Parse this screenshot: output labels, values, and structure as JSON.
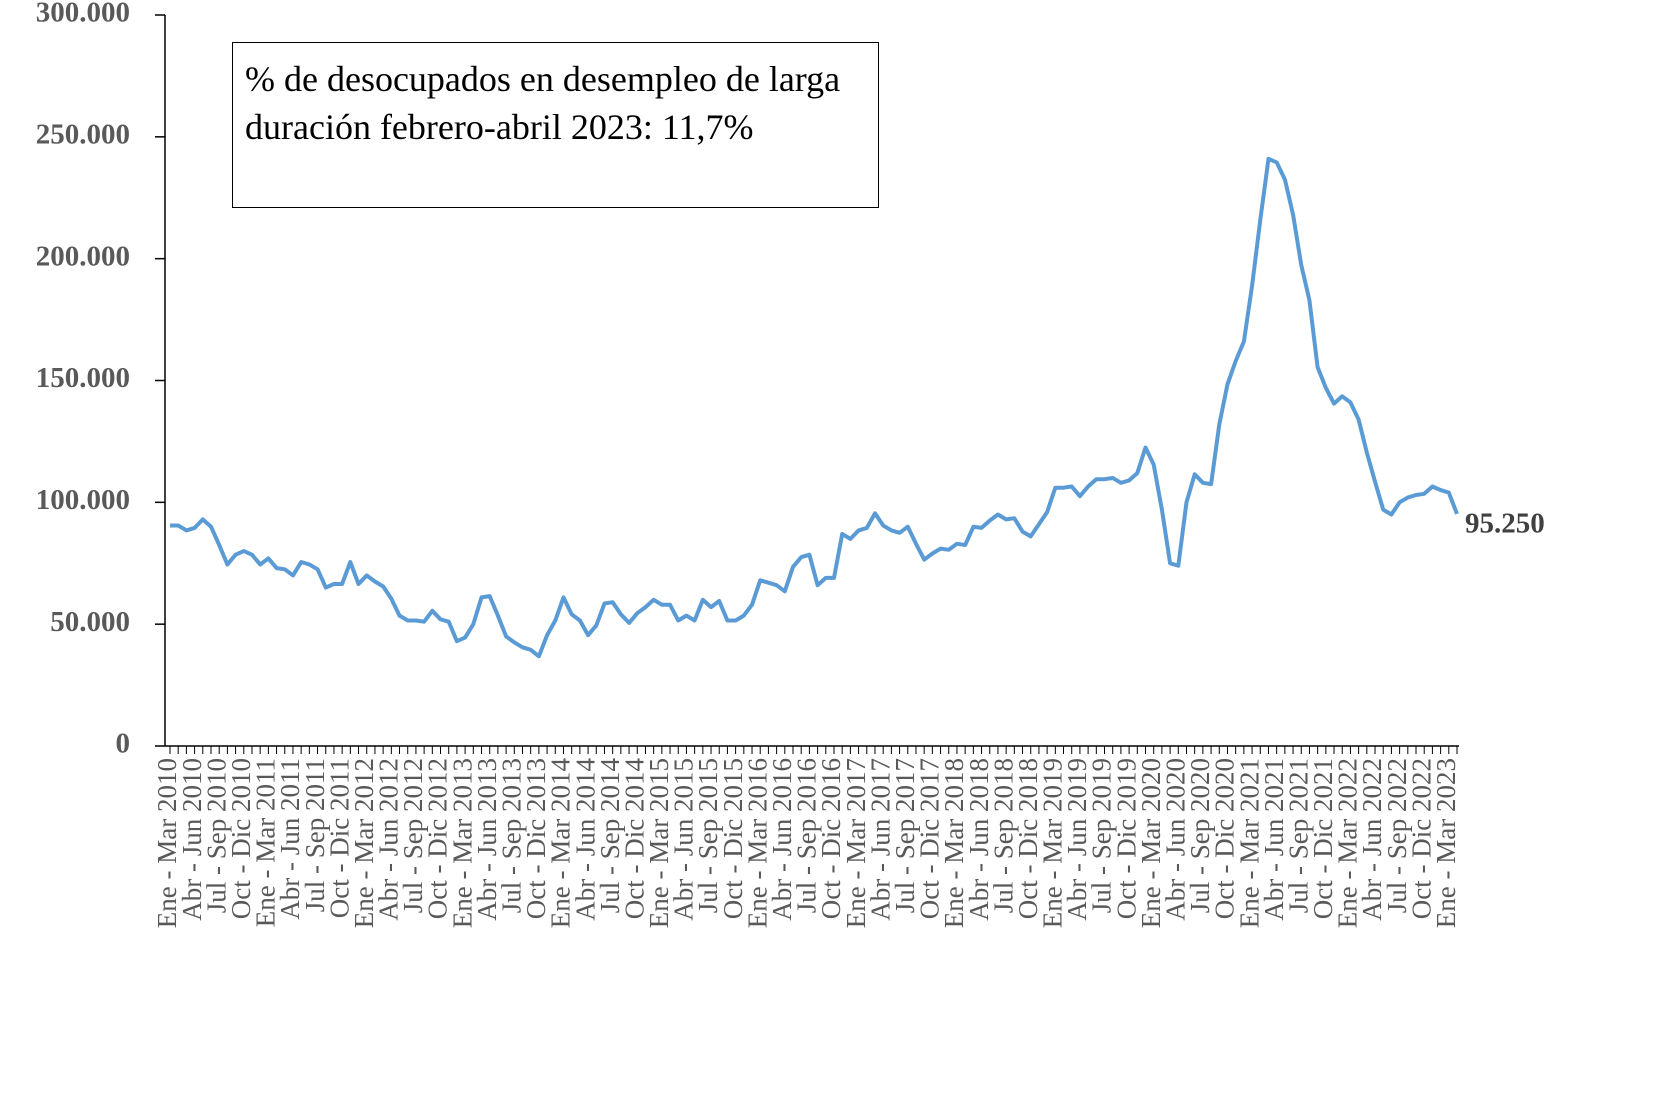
{
  "chart_data": {
    "type": "line",
    "annotation": "% de desocupados en desempleo de larga duración febrero-abril 2023: 11,7%",
    "categories": [
      "Ene - Mar 2010",
      null,
      null,
      "Abr - Jun 2010",
      null,
      null,
      "Jul - Sep 2010",
      null,
      null,
      "Oct - Dic 2010",
      null,
      null,
      "Ene - Mar 2011",
      null,
      null,
      "Abr - Jun 2011",
      null,
      null,
      "Jul - Sep 2011",
      null,
      null,
      "Oct - Dic 2011",
      null,
      null,
      "Ene - Mar 2012",
      null,
      null,
      "Abr - Jun 2012",
      null,
      null,
      "Jul - Sep 2012",
      null,
      null,
      "Oct - Dic 2012",
      null,
      null,
      "Ene - Mar 2013",
      null,
      null,
      "Abr - Jun 2013",
      null,
      null,
      "Jul - Sep 2013",
      null,
      null,
      "Oct - Dic 2013",
      null,
      null,
      "Ene - Mar 2014",
      null,
      null,
      "Abr - Jun 2014",
      null,
      null,
      "Jul - Sep 2014",
      null,
      null,
      "Oct - Dic 2014",
      null,
      null,
      "Ene - Mar 2015",
      null,
      null,
      "Abr - Jun 2015",
      null,
      null,
      "Jul - Sep 2015",
      null,
      null,
      "Oct - Dic 2015",
      null,
      null,
      "Ene - Mar 2016",
      null,
      null,
      "Abr - Jun 2016",
      null,
      null,
      "Jul - Sep 2016",
      null,
      null,
      "Oct - Dic 2016",
      null,
      null,
      "Ene - Mar 2017",
      null,
      null,
      "Abr - Jun 2017",
      null,
      null,
      "Jul - Sep 2017",
      null,
      null,
      "Oct - Dic 2017",
      null,
      null,
      "Ene - Mar 2018",
      null,
      null,
      "Abr - Jun 2018",
      null,
      null,
      "Jul - Sep 2018",
      null,
      null,
      "Oct - Dic 2018",
      null,
      null,
      "Ene - Mar 2019",
      null,
      null,
      "Abr - Jun 2019",
      null,
      null,
      "Jul - Sep 2019",
      null,
      null,
      "Oct - Dic 2019",
      null,
      null,
      "Ene - Mar 2020",
      null,
      null,
      "Abr - Jun 2020",
      null,
      null,
      "Jul - Sep 2020",
      null,
      null,
      "Oct - Dic 2020",
      null,
      null,
      "Ene - Mar 2021",
      null,
      null,
      "Abr - Jun 2021",
      null,
      null,
      "Jul - Sep 2021",
      null,
      null,
      "Oct - Dic 2021",
      null,
      null,
      "Ene - Mar 2022",
      null,
      null,
      "Abr - Jun 2022",
      null,
      null,
      "Jul - Sep 2022",
      null,
      null,
      "Oct - Dic 2022",
      null,
      null,
      "Ene - Mar 2023",
      null
    ],
    "values": [
      90500,
      90500,
      88500,
      89500,
      93000,
      90000,
      82500,
      74500,
      78500,
      80000,
      78500,
      74500,
      77000,
      73000,
      72500,
      70000,
      75500,
      74500,
      72500,
      65000,
      66500,
      66500,
      75500,
      66500,
      70000,
      67500,
      65500,
      60500,
      53500,
      51500,
      51500,
      51000,
      55500,
      52000,
      51000,
      43000,
      44500,
      50000,
      61000,
      61500,
      53500,
      45000,
      42500,
      40500,
      39500,
      36800,
      45500,
      51500,
      61000,
      54000,
      51500,
      45500,
      49500,
      58500,
      59000,
      54000,
      50500,
      54500,
      57000,
      60000,
      58000,
      58000,
      51500,
      53500,
      51500,
      60000,
      57000,
      59500,
      51500,
      51500,
      53500,
      58000,
      68000,
      67000,
      66000,
      63500,
      73500,
      77500,
      78500,
      66000,
      69000,
      69000,
      87000,
      85000,
      88500,
      89500,
      95500,
      90500,
      88500,
      87500,
      90000,
      83000,
      76500,
      79000,
      81000,
      80500,
      83000,
      82500,
      90000,
      89500,
      92500,
      95000,
      93000,
      93500,
      88000,
      86000,
      91000,
      96000,
      106000,
      106000,
      106500,
      102500,
      106500,
      109500,
      109500,
      110000,
      108000,
      109000,
      112000,
      122500,
      115500,
      97000,
      75000,
      74000,
      100000,
      111500,
      108000,
      107500,
      132000,
      148500,
      158000,
      166000,
      189000,
      216000,
      241000,
      239500,
      232500,
      218000,
      197500,
      183000,
      155500,
      147000,
      140500,
      143500,
      141000,
      134000,
      120500,
      108500,
      97000,
      95000,
      100000,
      102000,
      103000,
      103500,
      106500,
      105000,
      104000,
      95250
    ],
    "value_labels": [
      null,
      null,
      null,
      null,
      null,
      null,
      null,
      null,
      null,
      null,
      null,
      null,
      null,
      null,
      null,
      null,
      null,
      null,
      null,
      null,
      null,
      null,
      null,
      null,
      null,
      null,
      null,
      null,
      null,
      null,
      null,
      null,
      null,
      null,
      null,
      null,
      null,
      null,
      null,
      null,
      null,
      null,
      null,
      null,
      null,
      null,
      null,
      null,
      null,
      null,
      null,
      null,
      null,
      null,
      null,
      null,
      null,
      null,
      null,
      null,
      null,
      null,
      null,
      null,
      null,
      null,
      null,
      null,
      null,
      null,
      null,
      null,
      null,
      null,
      null,
      null,
      null,
      null,
      null,
      null,
      null,
      null,
      null,
      null,
      null,
      null,
      null,
      null,
      null,
      null,
      null,
      null,
      null,
      null,
      null,
      null,
      null,
      null,
      null,
      null,
      null,
      null,
      null,
      null,
      null,
      null,
      null,
      null,
      null,
      null,
      null,
      null,
      null,
      null,
      null,
      null,
      null,
      null,
      null,
      null,
      null,
      null,
      null,
      null,
      null,
      null,
      null,
      null,
      null,
      null,
      null,
      null,
      null,
      null,
      null,
      null,
      null,
      null,
      null,
      null,
      null,
      null,
      null,
      null,
      null,
      null,
      null,
      null,
      null,
      null,
      null,
      null,
      null,
      null,
      null,
      null,
      null,
      "95.250"
    ],
    "color": "#5b9bd5",
    "ylim": [
      0,
      300000
    ],
    "yticks": [
      0,
      {
        "value": 50000,
        "label": "50.000"
      },
      {
        "value": 100000,
        "label": "100.000"
      },
      {
        "value": 150000,
        "label": "150.000"
      },
      {
        "value": 200000,
        "label": "200.000"
      },
      {
        "value": 250000,
        "label": "250.000"
      },
      {
        "value": 300000,
        "label": "300.000"
      }
    ]
  }
}
